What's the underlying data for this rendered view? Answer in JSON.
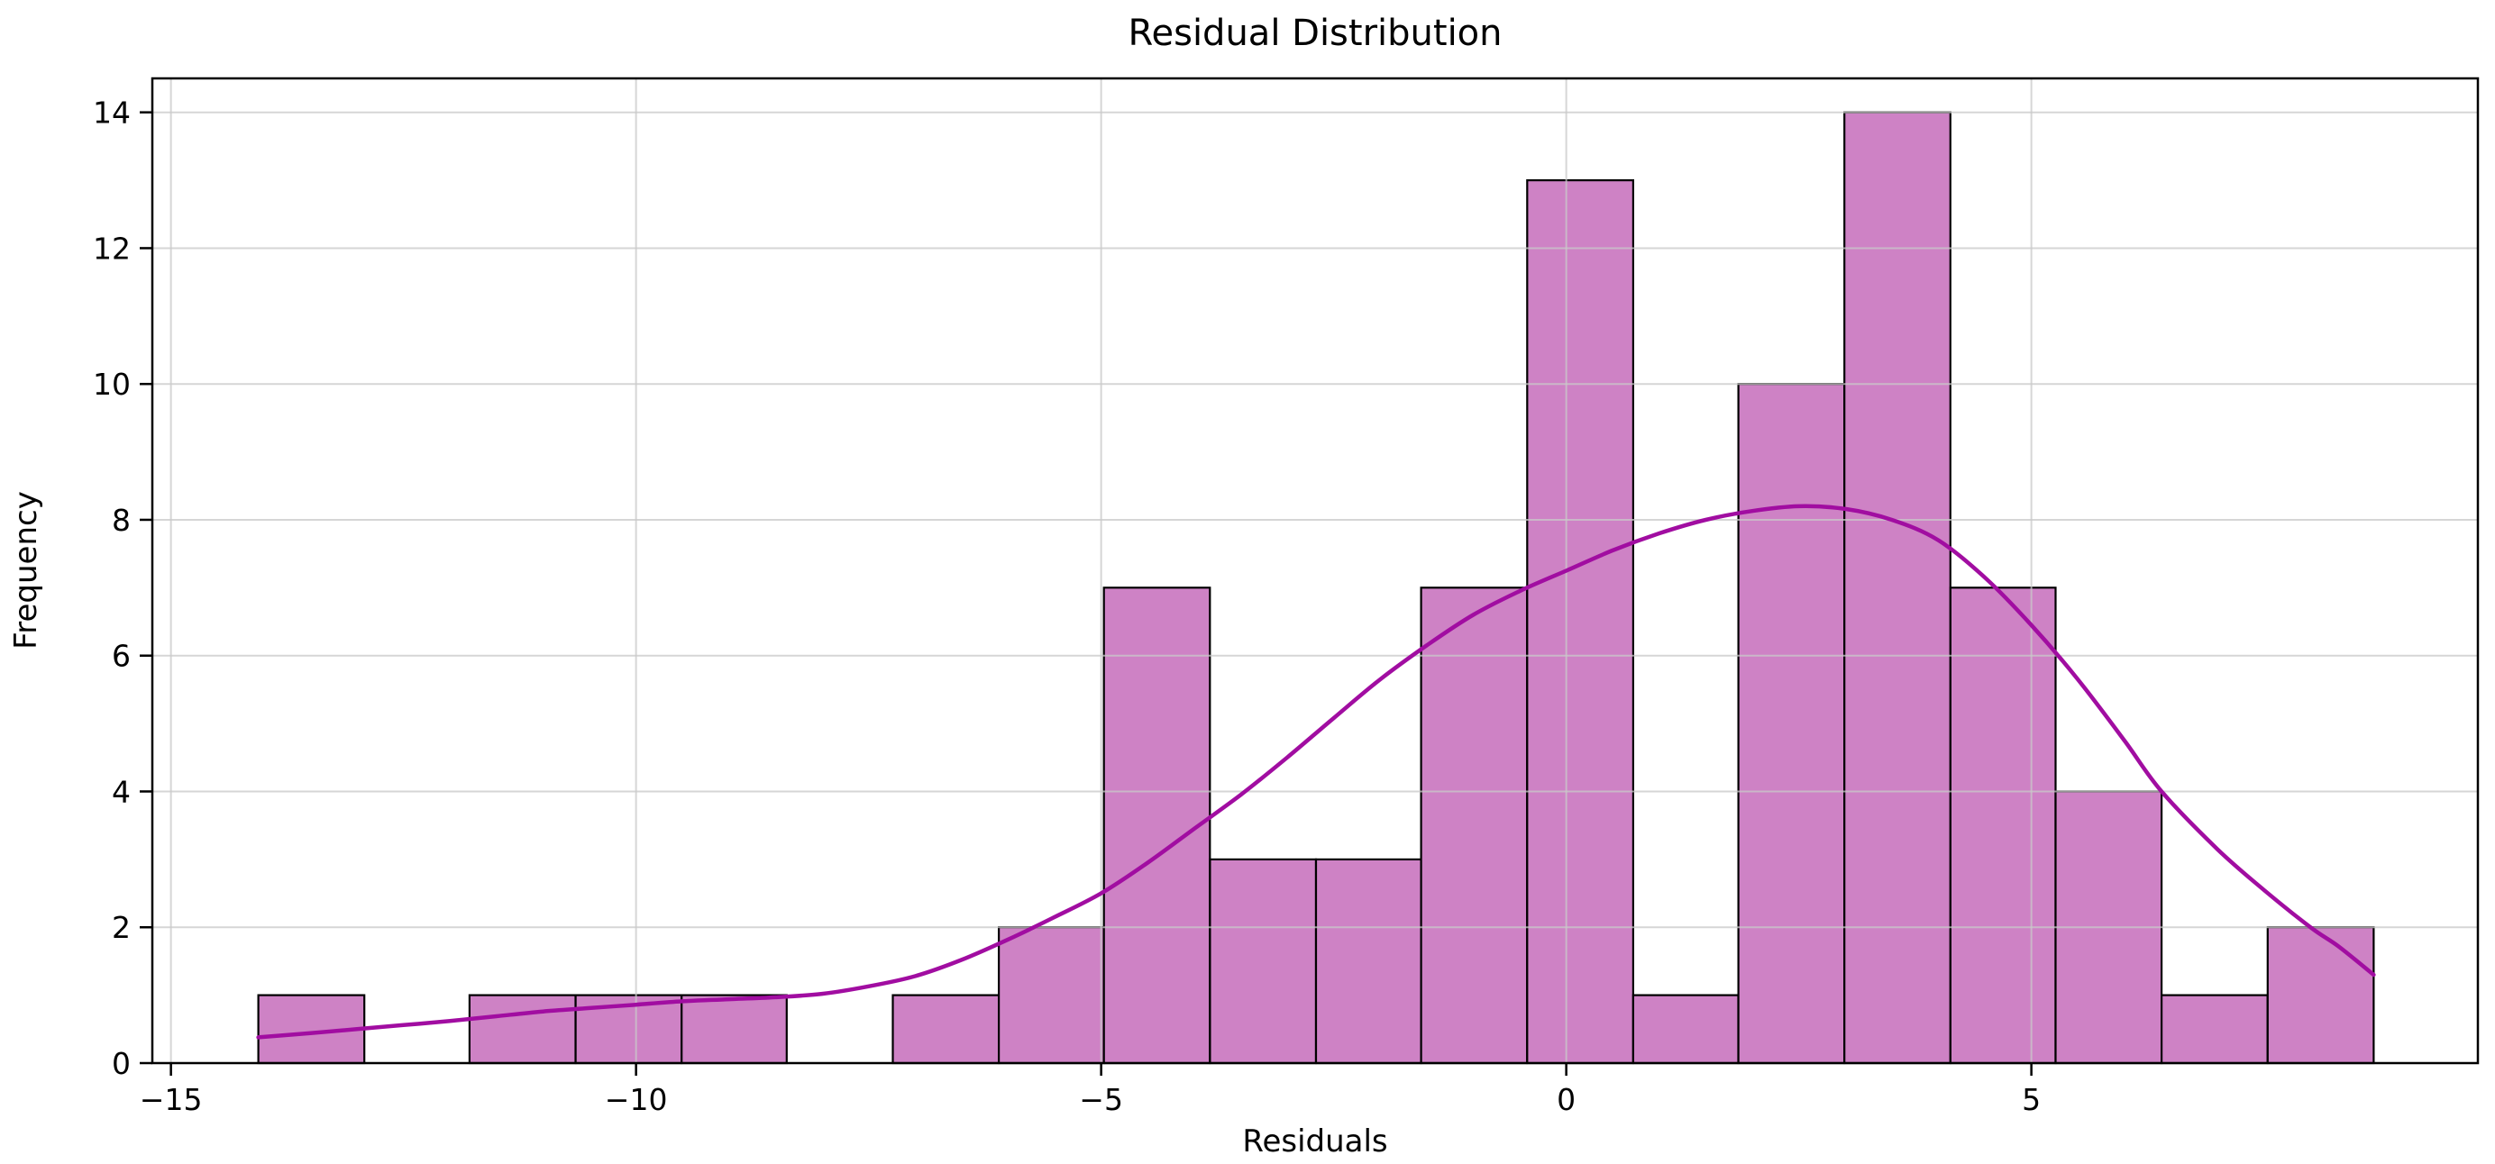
{
  "chart_data": {
    "type": "bar",
    "subtype": "histogram-with-kde",
    "title": "Residual Distribution",
    "xlabel": "Residuals",
    "ylabel": "Frequency",
    "xlim": [
      -15.2,
      9.8
    ],
    "ylim": [
      0,
      14.5
    ],
    "grid": true,
    "bin_edges": [
      -14.06,
      -12.92,
      -11.79,
      -10.65,
      -9.51,
      -8.38,
      -7.24,
      -6.1,
      -4.97,
      -3.83,
      -2.69,
      -1.56,
      -0.42,
      0.72,
      1.85,
      2.99,
      4.13,
      5.26,
      6.4,
      7.54,
      8.68
    ],
    "counts": [
      1,
      0,
      1,
      1,
      1,
      0,
      1,
      2,
      7,
      3,
      3,
      7,
      13,
      1,
      10,
      14,
      7,
      4,
      1,
      2
    ],
    "kde_curve": {
      "x": [
        -14.06,
        -13.5,
        -13,
        -12.5,
        -12,
        -11.5,
        -11,
        -10.5,
        -10,
        -9.5,
        -9,
        -8.5,
        -8,
        -7.5,
        -7,
        -6.5,
        -6,
        -5.5,
        -5,
        -4.5,
        -4,
        -3.5,
        -3,
        -2.5,
        -2,
        -1.5,
        -1,
        -0.5,
        0,
        0.5,
        1,
        1.5,
        2,
        2.5,
        3,
        3.5,
        4,
        4.5,
        5,
        5.5,
        6,
        6.4,
        7,
        7.5,
        8,
        8.3,
        8.68
      ],
      "y": [
        0.38,
        0.44,
        0.5,
        0.56,
        0.62,
        0.69,
        0.76,
        0.81,
        0.86,
        0.91,
        0.94,
        0.97,
        1.02,
        1.13,
        1.28,
        1.52,
        1.82,
        2.15,
        2.5,
        2.95,
        3.45,
        3.95,
        4.5,
        5.08,
        5.65,
        6.15,
        6.6,
        6.95,
        7.25,
        7.55,
        7.8,
        8.0,
        8.13,
        8.2,
        8.16,
        8.0,
        7.7,
        7.15,
        6.45,
        5.65,
        4.75,
        4.0,
        3.15,
        2.55,
        2.0,
        1.72,
        1.3
      ]
    },
    "xticks": {
      "values": [
        -15,
        -10,
        -5,
        0,
        5
      ],
      "labels": [
        "−15",
        "−10",
        "−5",
        "0",
        "5"
      ]
    },
    "yticks": {
      "values": [
        0,
        2,
        4,
        6,
        8,
        10,
        12,
        14
      ],
      "labels": [
        "0",
        "2",
        "4",
        "6",
        "8",
        "10",
        "12",
        "14"
      ]
    },
    "legend": null,
    "colors": {
      "bar_fill": "#ce82c5",
      "bar_edge": "#000000",
      "kde_line": "#a10da1",
      "grid_line": "#c9c9c9",
      "axis": "#000000",
      "text": "#000000",
      "background": "#ffffff"
    }
  }
}
